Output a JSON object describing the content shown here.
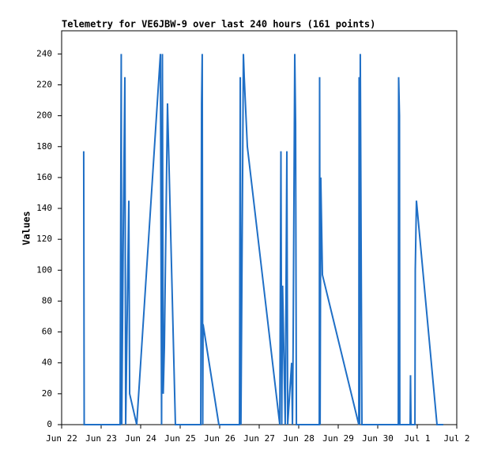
{
  "chart_data": {
    "type": "line",
    "title": "Telemetry for VE6JBW-9 over last 240 hours (161 points)",
    "y_label": "Values",
    "x": [
      13.4,
      13.7,
      35.5,
      35.8,
      36.2,
      36.5,
      37.4,
      38.4,
      38.9,
      40.8,
      41.3,
      45.6,
      60.0,
      60.7,
      61.2,
      61.7,
      62.4,
      64.3,
      69.1,
      84.5,
      85.0,
      85.4,
      85.7,
      85.9,
      95.5,
      108.0,
      108.5,
      108.9,
      110.4,
      110.9,
      112.8,
      132.5,
      133.2,
      133.7,
      134.2,
      135.8,
      136.8,
      137.3,
      139.7,
      140.2,
      140.6,
      141.6,
      142.1,
      142.6,
      156.5,
      156.7,
      157.0,
      157.4,
      158.4,
      180.5,
      180.7,
      181.0,
      181.4,
      181.9,
      182.4,
      204.5,
      204.7,
      205.2,
      205.4,
      211.7,
      211.9,
      212.2,
      214.6,
      214.8,
      215.5,
      228.0,
      231.8
    ],
    "series": [
      {
        "name": "Values",
        "color": "#1f6fc6",
        "values": [
          177,
          0,
          0,
          104,
          240,
          0,
          120,
          225,
          0,
          145,
          20,
          0,
          240,
          0,
          240,
          20,
          50,
          208,
          0,
          0,
          208,
          240,
          0,
          65,
          0,
          0,
          225,
          0,
          240,
          225,
          180,
          0,
          177,
          0,
          90,
          0,
          177,
          0,
          40,
          0,
          50,
          240,
          195,
          0,
          0,
          225,
          0,
          160,
          97,
          0,
          225,
          0,
          240,
          120,
          0,
          0,
          225,
          200,
          0,
          0,
          32,
          0,
          0,
          100,
          145,
          0,
          0
        ]
      }
    ],
    "xlim": [
      0,
      240
    ],
    "xticks": [
      {
        "value": 0,
        "label": "Jun 22"
      },
      {
        "value": 24,
        "label": "Jun 23"
      },
      {
        "value": 48,
        "label": "Jun 24"
      },
      {
        "value": 72,
        "label": "Jun 25"
      },
      {
        "value": 96,
        "label": "Jun 26"
      },
      {
        "value": 120,
        "label": "Jun 27"
      },
      {
        "value": 144,
        "label": "Jun 28"
      },
      {
        "value": 168,
        "label": "Jun 29"
      },
      {
        "value": 192,
        "label": "Jun 30"
      },
      {
        "value": 216,
        "label": "Jul 1"
      },
      {
        "value": 240,
        "label": "Jul 2"
      }
    ],
    "ylim": [
      0,
      255
    ],
    "yticks": [
      0,
      20,
      40,
      60,
      80,
      100,
      120,
      140,
      160,
      180,
      200,
      220,
      240
    ],
    "grid": false
  }
}
